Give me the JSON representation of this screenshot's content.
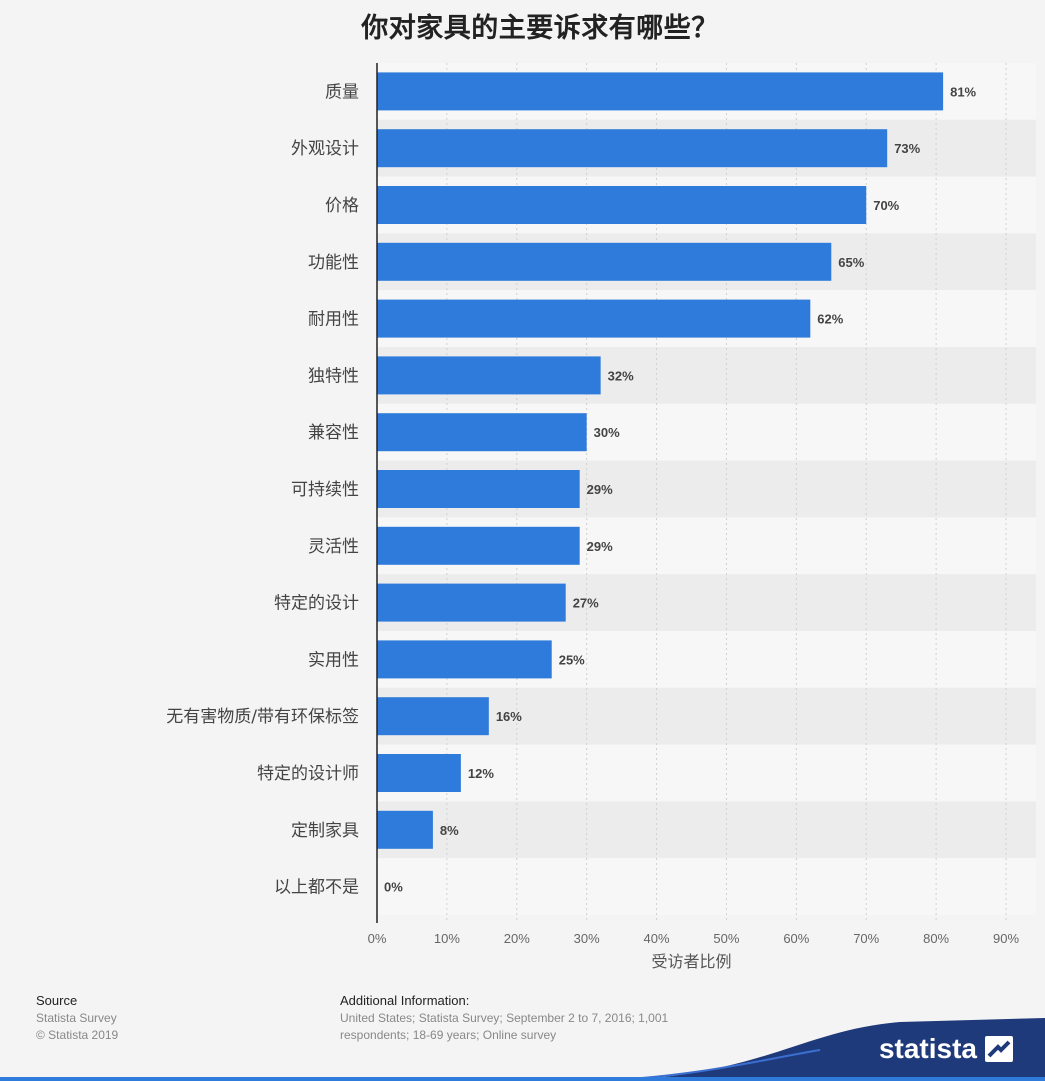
{
  "title": "你对家具的主要诉求有哪些？",
  "chart_data": {
    "type": "bar",
    "orientation": "horizontal",
    "categories": [
      "质量",
      "外观设计",
      "价格",
      "功能性",
      "耐用性",
      "独特性",
      "兼容性",
      "可持续性",
      "灵活性",
      "特定的设计",
      "实用性",
      "无有害物质/带有环保标签",
      "特定的设计师",
      "定制家具",
      "以上都不是"
    ],
    "values": [
      81,
      73,
      70,
      65,
      62,
      32,
      30,
      29,
      29,
      27,
      25,
      16,
      12,
      8,
      0
    ],
    "value_labels": [
      "81%",
      "73%",
      "70%",
      "65%",
      "62%",
      "32%",
      "30%",
      "29%",
      "29%",
      "27%",
      "25%",
      "16%",
      "12%",
      "8%",
      "0%"
    ],
    "xlabel": "受访者比例",
    "xlim": [
      0,
      90
    ],
    "xticks": [
      "0%",
      "10%",
      "20%",
      "30%",
      "40%",
      "50%",
      "60%",
      "70%",
      "80%",
      "90%"
    ],
    "grid": true,
    "bar_color": "#2e7bdb"
  },
  "footer": {
    "source_heading": "Source",
    "source_lines": [
      "Statista Survey",
      "© Statista 2019"
    ],
    "info_heading": "Additional Information:",
    "info_lines": [
      "United States; Statista Survey; September 2 to 7, 2016; 1,001",
      "respondents; 18-69 years; Online survey"
    ]
  },
  "brand": {
    "name": "statista",
    "accent": "#1f3a7a"
  }
}
